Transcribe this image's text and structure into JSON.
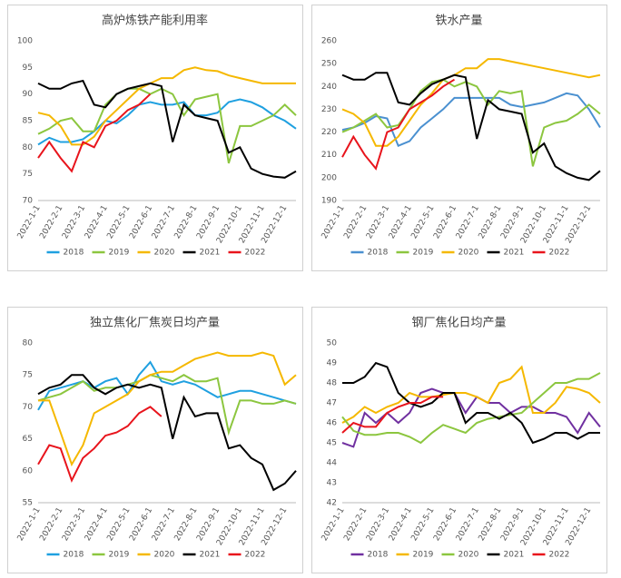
{
  "chart_data": [
    {
      "type": "line",
      "title": "高炉炼铁产能利用率",
      "categories": [
        "2022-1-1",
        null,
        "2022-2-1",
        null,
        "2022-3-1",
        null,
        "2022-4-1",
        null,
        "2022-5-1",
        null,
        "2022-6-1",
        null,
        "2022-7-1",
        null,
        "2022-8-1",
        null,
        "2022-9-1",
        null,
        "2022-10-1",
        null,
        "2022-11-1",
        null,
        "2022-12-1",
        null
      ],
      "ylim": [
        70,
        100
      ],
      "yticks": [
        70,
        75,
        80,
        85,
        90,
        95,
        100
      ],
      "grid": false,
      "legend": "bottom",
      "series": [
        {
          "name": "2018",
          "color": "#1fa0e0",
          "values": [
            80.5,
            81.8,
            81,
            81,
            81.5,
            83,
            85,
            84.5,
            86,
            88,
            88.5,
            88,
            88,
            88.5,
            86,
            86,
            86.5,
            88.5,
            89,
            88.5,
            87.5,
            86,
            85,
            83.5
          ]
        },
        {
          "name": "2019",
          "color": "#8cc63f",
          "values": [
            82.5,
            83.5,
            85,
            85.5,
            83,
            83,
            88,
            90,
            91,
            91,
            90,
            91,
            90,
            86,
            89,
            89.5,
            90,
            77,
            84,
            84,
            85,
            86,
            88,
            86
          ]
        },
        {
          "name": "2020",
          "color": "#f5b800",
          "values": [
            86.5,
            86,
            84,
            80.5,
            80.5,
            82,
            85,
            87,
            89,
            91,
            92,
            93,
            93,
            94.5,
            95,
            94.5,
            94.3,
            93.5,
            93,
            92.5,
            92,
            92,
            92,
            92
          ]
        },
        {
          "name": "2021",
          "color": "#000000",
          "values": [
            92,
            91,
            91,
            92,
            92.5,
            88,
            87.5,
            90,
            91,
            91.5,
            92,
            91.5,
            81,
            88,
            86,
            85.5,
            85,
            79,
            80,
            76,
            75,
            74.5,
            74.3,
            75.5
          ]
        },
        {
          "name": "2022",
          "color": "#e8141c",
          "values": [
            78,
            81,
            78,
            75.5,
            81,
            80,
            84,
            85,
            87,
            88,
            90,
            null,
            null,
            null,
            null,
            null,
            null,
            null,
            null,
            null,
            null,
            null,
            null,
            null
          ]
        }
      ]
    },
    {
      "type": "line",
      "title": "铁水产量",
      "categories": [
        "2022-1-1",
        null,
        "2022-2-1",
        null,
        "2022-3-1",
        null,
        "2022-4-1",
        null,
        "2022-5-1",
        null,
        "2022-6-1",
        null,
        "2022-7-1",
        null,
        "2022-8-1",
        null,
        "2022-9-1",
        null,
        "2022-10-1",
        null,
        "2022-11-1",
        null,
        "2022-12-1",
        null
      ],
      "ylim": [
        190,
        260
      ],
      "yticks": [
        190,
        200,
        210,
        220,
        230,
        240,
        250,
        260
      ],
      "grid": false,
      "legend": "bottom",
      "series": [
        {
          "name": "2018",
          "color": "#4a90d0",
          "values": [
            221,
            222,
            224,
            227,
            226,
            214,
            216,
            222,
            226,
            230,
            235,
            235,
            235,
            235,
            235,
            232,
            231,
            232,
            233,
            235,
            237,
            236,
            230,
            222
          ]
        },
        {
          "name": "2019",
          "color": "#8cc63f",
          "values": [
            220,
            222,
            225,
            228,
            222,
            223,
            230,
            238,
            242,
            243,
            240,
            242,
            240,
            232,
            238,
            237,
            238,
            205,
            222,
            224,
            225,
            228,
            232,
            228
          ]
        },
        {
          "name": "2020",
          "color": "#f5b800",
          "values": [
            230,
            228,
            224,
            214,
            214,
            218,
            225,
            232,
            237,
            243,
            245,
            248,
            248,
            252,
            252,
            251,
            250,
            249,
            248,
            247,
            246,
            245,
            244,
            245
          ]
        },
        {
          "name": "2021",
          "color": "#000000",
          "values": [
            245,
            243,
            243,
            246,
            246,
            233,
            232,
            237,
            241,
            243,
            245,
            244,
            217,
            234,
            230,
            229,
            228,
            211,
            215,
            205,
            202,
            200,
            199,
            203
          ]
        },
        {
          "name": "2022",
          "color": "#e8141c",
          "values": [
            209,
            218,
            210,
            204,
            220,
            222,
            230,
            233,
            236,
            240,
            243,
            null,
            null,
            null,
            null,
            null,
            null,
            null,
            null,
            null,
            null,
            null,
            null,
            null
          ]
        }
      ]
    },
    {
      "type": "line",
      "title": "独立焦化厂焦炭日均产量",
      "categories": [
        "2022-1-1",
        null,
        "2022-2-1",
        null,
        "2022-3-1",
        null,
        "2022-4-1",
        null,
        "2022-5-1",
        null,
        "2022-6-1",
        null,
        "2022-7-1",
        null,
        "2022-8-1",
        null,
        "2022-9-1",
        null,
        "2022-10-1",
        null,
        "2022-11-1",
        null,
        "2022-12-1",
        null
      ],
      "ylim": [
        55,
        80
      ],
      "yticks": [
        55,
        60,
        65,
        70,
        75,
        80
      ],
      "grid": false,
      "legend": "bottom",
      "series": [
        {
          "name": "2018",
          "color": "#1fa0e0",
          "values": [
            69.5,
            72.5,
            73,
            73.5,
            74,
            73,
            74,
            74.5,
            72,
            75,
            77,
            74,
            73.5,
            74,
            73.5,
            72.5,
            71.5,
            72,
            72.5,
            72.5,
            72,
            71.5,
            71,
            70.5
          ]
        },
        {
          "name": "2019",
          "color": "#8cc63f",
          "values": [
            71,
            71.5,
            72,
            73,
            74,
            72.5,
            73,
            73,
            73.5,
            74,
            75,
            74.5,
            74,
            75,
            74,
            74,
            74.5,
            66,
            71,
            71,
            70.5,
            70.5,
            71,
            70.5
          ]
        },
        {
          "name": "2020",
          "color": "#f5b800",
          "values": [
            71,
            71,
            66,
            61,
            64,
            69,
            70,
            71,
            72,
            74,
            75,
            75.5,
            75.5,
            76.5,
            77.5,
            78,
            78.5,
            78,
            78,
            78,
            78.5,
            78,
            73.5,
            75
          ]
        },
        {
          "name": "2021",
          "color": "#000000",
          "values": [
            72,
            73,
            73.5,
            75,
            75,
            73,
            72,
            73,
            73.5,
            73,
            73.5,
            73,
            65,
            71.5,
            68.5,
            69,
            69,
            63.5,
            64,
            62,
            61,
            57,
            58,
            60
          ]
        },
        {
          "name": "2022",
          "color": "#e8141c",
          "values": [
            61,
            64,
            63.5,
            58.5,
            62,
            63.5,
            65.5,
            66,
            67,
            69,
            70,
            68.5,
            null,
            null,
            null,
            null,
            null,
            null,
            null,
            null,
            null,
            null,
            null,
            null
          ]
        }
      ]
    },
    {
      "type": "line",
      "title": "钢厂焦化日均产量",
      "categories": [
        "2022-1-1",
        null,
        "2022-2-1",
        null,
        "2022-3-1",
        null,
        "2022-4-1",
        null,
        "2022-5-1",
        null,
        "2022-6-1",
        null,
        "2022-7-1",
        null,
        "2022-8-1",
        null,
        "2022-9-1",
        null,
        "2022-10-1",
        null,
        "2022-11-1",
        null,
        "2022-12-1",
        null
      ],
      "ylim": [
        42,
        50
      ],
      "yticks": [
        42,
        43,
        44,
        45,
        46,
        47,
        48,
        49,
        50
      ],
      "grid": false,
      "legend": "bottom",
      "series": [
        {
          "name": "2018",
          "color": "#7030a0",
          "values": [
            45,
            44.8,
            46.5,
            46,
            46.5,
            46,
            46.5,
            47.5,
            47.7,
            47.5,
            47.5,
            46.5,
            47.3,
            47,
            47,
            46.5,
            46.8,
            46.8,
            46.5,
            46.5,
            46.3,
            45.5,
            46.5,
            45.8
          ]
        },
        {
          "name": "2019",
          "color": "#f5b800",
          "values": [
            46,
            46.3,
            46.8,
            46.5,
            46.8,
            47,
            47.5,
            47.3,
            47.3,
            47.4,
            47.5,
            47.5,
            47.3,
            47,
            48,
            48.2,
            48.8,
            46.5,
            46.5,
            47,
            47.8,
            47.7,
            47.5,
            47
          ]
        },
        {
          "name": "2020",
          "color": "#8cc63f",
          "values": [
            46.3,
            45.6,
            45.4,
            45.4,
            45.5,
            45.5,
            45.3,
            45,
            45.5,
            45.9,
            45.7,
            45.5,
            46,
            46.2,
            46.3,
            46.4,
            46.5,
            47,
            47.5,
            48,
            48,
            48.2,
            48.2,
            48.5
          ]
        },
        {
          "name": "2021",
          "color": "#000000",
          "values": [
            48,
            48,
            48.3,
            49,
            48.8,
            47.5,
            47,
            46.8,
            47,
            47.5,
            47.5,
            46,
            46.5,
            46.5,
            46.2,
            46.5,
            46,
            45,
            45.2,
            45.5,
            45.5,
            45.2,
            45.5,
            45.5
          ]
        },
        {
          "name": "2022",
          "color": "#e8141c",
          "values": [
            45.5,
            46,
            45.8,
            45.8,
            46.5,
            46.8,
            47,
            47,
            47.3,
            47.3,
            null,
            null,
            null,
            null,
            null,
            null,
            null,
            null,
            null,
            null,
            null,
            null,
            null,
            null
          ]
        }
      ]
    }
  ]
}
